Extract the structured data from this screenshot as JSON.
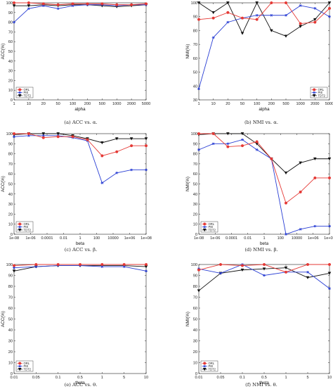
{
  "colors": {
    "ORL": "#e53935",
    "PIE": "#2a3fd4",
    "TDT2": "#111111"
  },
  "chart_data": [
    {
      "type": "line",
      "caption": "(a) ACC vs. α.",
      "xlabel": "alpha",
      "ylabel": "ACC(%)",
      "categories": [
        "1",
        "10",
        "20",
        "50",
        "100",
        "200",
        "500",
        "1000",
        "2000",
        "5000"
      ],
      "ylim": [
        0,
        100
      ],
      "yticks": [
        0,
        10,
        20,
        30,
        40,
        50,
        60,
        70,
        80,
        90,
        100
      ],
      "grid": false,
      "legend": "bottom-left",
      "series": [
        {
          "name": "ORL",
          "marker": "circle",
          "values": [
            100,
            100,
            99,
            98,
            99,
            99,
            99,
            98,
            98,
            99
          ]
        },
        {
          "name": "PIE",
          "marker": "star",
          "values": [
            80,
            94,
            97,
            94,
            97,
            98,
            98,
            97,
            98,
            98
          ]
        },
        {
          "name": "TDT2",
          "marker": "triangle",
          "values": [
            97,
            97,
            98,
            97,
            98,
            98,
            97,
            96,
            97,
            98
          ]
        }
      ]
    },
    {
      "type": "line",
      "caption": "(b) NMI vs. α.",
      "xlabel": "alpha",
      "ylabel": "NMI(%)",
      "categories": [
        "1",
        "10",
        "20",
        "50",
        "100",
        "200",
        "500",
        "1000",
        "2000",
        "5000"
      ],
      "ylim": [
        30,
        100
      ],
      "yticks": [
        30,
        40,
        50,
        60,
        70,
        80,
        90,
        100
      ],
      "grid": false,
      "legend": "bottom-right",
      "series": [
        {
          "name": "ORL",
          "marker": "circle",
          "values": [
            88,
            89,
            93,
            89,
            88,
            100,
            100,
            85,
            86,
            96
          ]
        },
        {
          "name": "PIE",
          "marker": "star",
          "values": [
            38,
            75,
            86,
            89,
            91,
            91,
            91,
            98,
            96,
            90
          ]
        },
        {
          "name": "TDT2",
          "marker": "triangle",
          "values": [
            100,
            93,
            100,
            78,
            100,
            80,
            76,
            83,
            88,
            100
          ]
        }
      ]
    },
    {
      "type": "line",
      "caption": "(c) ACC vs. β.",
      "xlabel": "beta",
      "ylabel": "ACC(%)",
      "categories": [
        "1e-08",
        "1e-06",
        "0.0001",
        "0.01",
        "1",
        "100",
        "10000",
        "1e+06",
        "1e+08"
      ],
      "x_positions": [
        0,
        1.5,
        2.5,
        3.5,
        4.5,
        5.5,
        6.5,
        7.5,
        8.5
      ],
      "xtick_labels": [
        "1e-08",
        "1e-06",
        "0.0001",
        "0.01",
        "1",
        "100",
        "10000",
        "1e+06",
        "1e+08"
      ],
      "xtick_positions": [
        0,
        2,
        3,
        4,
        5,
        6,
        7,
        8,
        9
      ],
      "ylim": [
        0,
        100
      ],
      "yticks": [
        0,
        10,
        20,
        30,
        40,
        50,
        60,
        70,
        80,
        90,
        100
      ],
      "grid": false,
      "legend": "bottom-left",
      "series": [
        {
          "name": "ORL",
          "marker": "circle",
          "x": [
            0,
            1,
            2,
            3,
            4,
            5,
            6,
            7,
            8,
            9
          ],
          "values": [
            100,
            100,
            96,
            97,
            97,
            94,
            78,
            82,
            88,
            88
          ]
        },
        {
          "name": "PIE",
          "marker": "star",
          "x": [
            0,
            1,
            2,
            3,
            4,
            5,
            6,
            7,
            8,
            9
          ],
          "values": [
            97,
            98,
            98,
            98,
            96,
            93,
            51,
            61,
            64,
            64
          ]
        },
        {
          "name": "TDT2",
          "marker": "triangle",
          "x": [
            0,
            1,
            2,
            3,
            4,
            5,
            6,
            7,
            8,
            9
          ],
          "values": [
            99,
            100,
            100,
            100,
            98,
            95,
            91,
            95,
            95,
            95
          ]
        }
      ]
    },
    {
      "type": "line",
      "caption": "(d) NMI vs. β.",
      "xlabel": "beta",
      "ylabel": "NMI(%)",
      "categories": [
        "1e-08",
        "1e-06",
        "0.0001",
        "0.01",
        "1",
        "100",
        "10000",
        "1e+06",
        "1e+08"
      ],
      "xtick_labels": [
        "1e-08",
        "1e-06",
        "0.0001",
        "0.01",
        "1",
        "100",
        "10000",
        "1e+06",
        "1e+08"
      ],
      "ylim": [
        0,
        100
      ],
      "yticks": [
        0,
        10,
        20,
        30,
        40,
        50,
        60,
        70,
        80,
        90,
        100
      ],
      "grid": false,
      "legend": "bottom-left",
      "series": [
        {
          "name": "ORL",
          "marker": "circle",
          "x": [
            0,
            1,
            2,
            3,
            4,
            5,
            6,
            7,
            8,
            9
          ],
          "values": [
            100,
            100,
            87,
            88,
            92,
            75,
            31,
            42,
            56,
            56
          ]
        },
        {
          "name": "PIE",
          "marker": "star",
          "x": [
            0,
            1,
            2,
            3,
            4,
            5,
            6,
            7,
            8,
            9
          ],
          "values": [
            84,
            90,
            90,
            94,
            84,
            75,
            0,
            5,
            8,
            8
          ]
        },
        {
          "name": "TDT2",
          "marker": "triangle",
          "x": [
            0,
            1,
            2,
            3,
            4,
            5,
            6,
            7,
            8,
            9
          ],
          "values": [
            99,
            100,
            100,
            100,
            90,
            75,
            61,
            71,
            75,
            75
          ]
        }
      ]
    },
    {
      "type": "line",
      "caption": "(e) ACC vs. θ.",
      "xlabel": "theta",
      "ylabel": "ACC(%)",
      "categories": [
        "0.01",
        "0.05",
        "0.1",
        "0.5",
        "1",
        "5",
        "10"
      ],
      "ylim": [
        0,
        100
      ],
      "yticks": [
        0,
        10,
        20,
        30,
        40,
        50,
        60,
        70,
        80,
        90,
        100
      ],
      "grid": false,
      "legend": "bottom-left",
      "series": [
        {
          "name": "ORL",
          "marker": "circle",
          "values": [
            99,
            100,
            100,
            100,
            100,
            100,
            100
          ]
        },
        {
          "name": "PIE",
          "marker": "star",
          "values": [
            97,
            98,
            99,
            99,
            98,
            98,
            94
          ]
        },
        {
          "name": "TDT2",
          "marker": "triangle",
          "values": [
            94,
            98,
            99,
            99,
            99,
            99,
            98
          ]
        }
      ]
    },
    {
      "type": "line",
      "caption": "(f) NMI vs. θ.",
      "xlabel": "theta",
      "ylabel": "NMI(%)",
      "categories": [
        "0.01",
        "0.05",
        "0.1",
        "0.5",
        "1",
        "5",
        "10"
      ],
      "ylim": [
        0,
        100
      ],
      "yticks": [
        0,
        10,
        20,
        30,
        40,
        50,
        60,
        70,
        80,
        90,
        100
      ],
      "grid": false,
      "legend": "bottom-left",
      "series": [
        {
          "name": "ORL",
          "marker": "circle",
          "values": [
            95,
            100,
            99,
            100,
            93,
            100,
            100
          ]
        },
        {
          "name": "PIE",
          "marker": "star",
          "values": [
            96,
            92,
            100,
            90,
            93,
            93,
            78
          ]
        },
        {
          "name": "TDT2",
          "marker": "triangle",
          "values": [
            76,
            92,
            95,
            96,
            97,
            88,
            92
          ]
        }
      ]
    }
  ]
}
